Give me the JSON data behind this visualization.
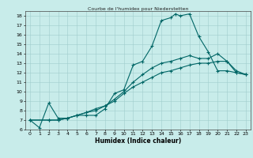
{
  "title": "Courbe de l'humidex pour Niederstetten",
  "xlabel": "Humidex (Indice chaleur)",
  "xlim": [
    -0.5,
    23.5
  ],
  "ylim": [
    6,
    18.5
  ],
  "yticks": [
    6,
    7,
    8,
    9,
    10,
    11,
    12,
    13,
    14,
    15,
    16,
    17,
    18
  ],
  "xticks": [
    0,
    1,
    2,
    3,
    4,
    5,
    6,
    7,
    8,
    9,
    10,
    11,
    12,
    13,
    14,
    15,
    16,
    17,
    18,
    19,
    20,
    21,
    22,
    23
  ],
  "bg_color": "#c8ecea",
  "line_color": "#006666",
  "line1_x": [
    0,
    1,
    2,
    3,
    4,
    5,
    6,
    7,
    8,
    9,
    10,
    11,
    12,
    13,
    14,
    15,
    15.5,
    16,
    17,
    18,
    19,
    20,
    21,
    22,
    23
  ],
  "line1_y": [
    7.0,
    6.2,
    8.8,
    7.2,
    7.2,
    7.5,
    7.5,
    7.5,
    8.2,
    9.8,
    10.2,
    12.8,
    13.2,
    14.8,
    17.5,
    17.8,
    18.2,
    18.0,
    18.2,
    15.8,
    14.2,
    12.2,
    12.2,
    12.0,
    11.8
  ],
  "line2_x": [
    0,
    2,
    3,
    4,
    5,
    6,
    7,
    8,
    9,
    10,
    11,
    12,
    13,
    14,
    15,
    16,
    17,
    18,
    19,
    20,
    21,
    22,
    23
  ],
  "line2_y": [
    7.0,
    7.0,
    7.0,
    7.2,
    7.5,
    7.8,
    8.2,
    8.5,
    9.2,
    10.0,
    11.0,
    11.8,
    12.5,
    13.0,
    13.2,
    13.5,
    13.8,
    13.5,
    13.5,
    14.0,
    13.2,
    12.2,
    11.8
  ],
  "line3_x": [
    0,
    2,
    3,
    4,
    5,
    6,
    7,
    8,
    9,
    10,
    11,
    12,
    13,
    14,
    15,
    16,
    17,
    18,
    19,
    20,
    21,
    22,
    23
  ],
  "line3_y": [
    7.0,
    7.0,
    7.0,
    7.2,
    7.5,
    7.8,
    8.0,
    8.5,
    9.0,
    9.8,
    10.5,
    11.0,
    11.5,
    12.0,
    12.2,
    12.5,
    12.8,
    13.0,
    13.0,
    13.2,
    13.2,
    12.0,
    11.8
  ],
  "figsize": [
    3.2,
    2.0
  ],
  "dpi": 100
}
